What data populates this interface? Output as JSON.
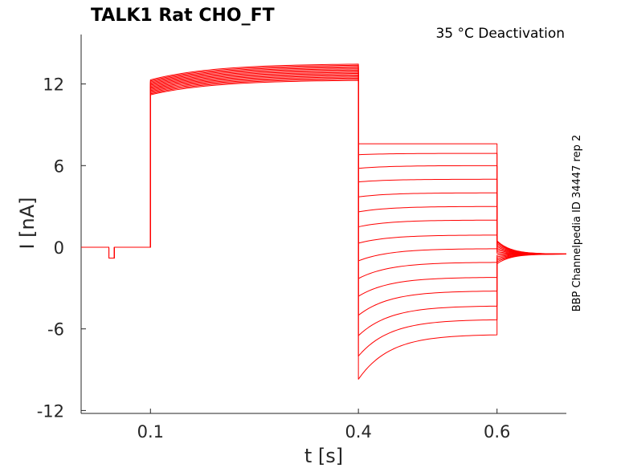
{
  "chart_data": {
    "type": "line",
    "title": "TALK1  Rat  CHO_FT",
    "annotation": "35 °C  Deactivation",
    "side_label": "BBP Channelpedia ID 34447 rep 2",
    "xlabel": "t [s]",
    "ylabel": "I [nA]",
    "xlim": [
      0.0,
      0.7
    ],
    "ylim": [
      -12.2,
      15.6
    ],
    "xticks": [
      0.1,
      0.4,
      0.6
    ],
    "xtick_labels": [
      "0.1",
      "0.4",
      "0.6"
    ],
    "yticks": [
      -12,
      -6,
      0,
      6,
      12
    ],
    "ytick_labels": [
      "-12",
      "-6",
      "0",
      "6",
      "12"
    ],
    "line_color": "#ff0000",
    "grid": false,
    "protocol": {
      "baseline_nA": 0,
      "prepulse_window_s": [
        0.04,
        0.048
      ],
      "prepulse_current_nA": -0.8,
      "activation_start_s": 0.1,
      "activation_end_s": 0.4,
      "deactivation_end_s": 0.6
    },
    "series_summary": {
      "count": 15,
      "activation_start_nA": [
        11.2,
        12.3
      ],
      "activation_end_nA": [
        12.3,
        13.5
      ],
      "deactivation_start_nA": [
        -9.7,
        -8.0,
        -6.5,
        -5.0,
        -3.6,
        -2.3,
        -1.0,
        0.3,
        1.5,
        2.6,
        3.7,
        4.8,
        5.8,
        6.8,
        7.6
      ],
      "deactivation_end_nA": [
        -6.4,
        -5.3,
        -4.3,
        -3.2,
        -2.2,
        -1.1,
        -0.1,
        0.9,
        2.0,
        3.0,
        4.0,
        5.0,
        6.0,
        6.9,
        7.6
      ],
      "tail_end_nA": -0.5
    }
  }
}
